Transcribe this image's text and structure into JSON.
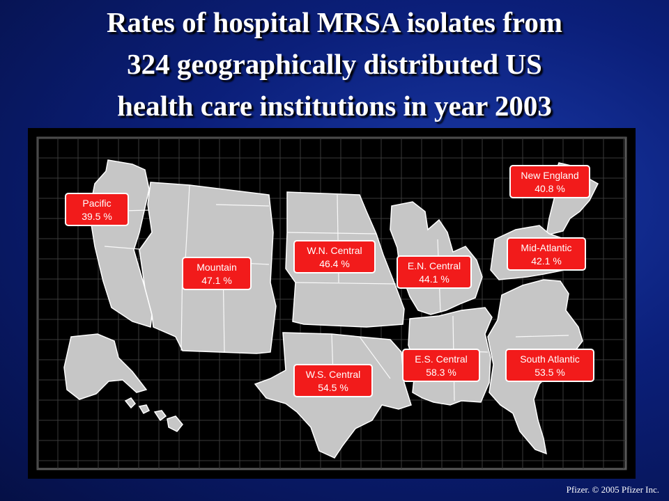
{
  "title_lines": [
    "Rates of hospital MRSA isolates from",
    "324 geographically distributed US",
    "health care institutions in year 2003"
  ],
  "regions": [
    {
      "key": "pacific",
      "name": "Pacific",
      "rate": "39.5 %"
    },
    {
      "key": "mountain",
      "name": "Mountain",
      "rate": "47.1 %"
    },
    {
      "key": "wn_central",
      "name": "W.N. Central",
      "rate": "46.4 %"
    },
    {
      "key": "en_central",
      "name": "E.N. Central",
      "rate": "44.1 %"
    },
    {
      "key": "new_england",
      "name": "New England",
      "rate": "40.8 %"
    },
    {
      "key": "mid_atlantic",
      "name": "Mid-Atlantic",
      "rate": "42.1 %"
    },
    {
      "key": "ws_central",
      "name": "W.S. Central",
      "rate": "54.5 %"
    },
    {
      "key": "es_central",
      "name": "E.S. Central",
      "rate": "58.3 %"
    },
    {
      "key": "south_atlantic",
      "name": "South Atlantic",
      "rate": "53.5 %"
    }
  ],
  "footer": "Pfizer. © 2005 Pfizer Inc.",
  "colors": {
    "label_fill": "#f21b1b",
    "label_border": "#ffffff",
    "land": "#c8c8c8",
    "grid": "#3a3a3a",
    "background": "#000000"
  }
}
